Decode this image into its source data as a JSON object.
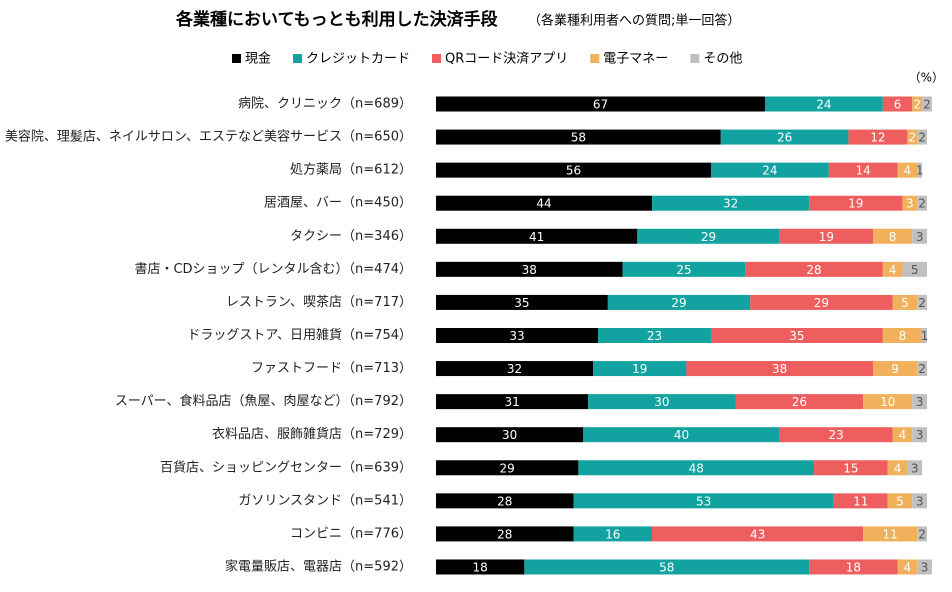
{
  "chart_data": {
    "type": "stacked-bar-horizontal",
    "title": "各業種においてもっとも利用した決済手段",
    "subtitle": "（各業種利用者への質問;単一回答）",
    "unit": "（%）",
    "categories": [
      "病院、クリニック（n=689）",
      "美容院、理髪店、ネイルサロン、エステなど美容サービス（n=650）",
      "処方薬局（n=612）",
      "居酒屋、バー（n=450）",
      "タクシー（n=346）",
      "書店・CDショップ（レンタル含む）（n=474）",
      "レストラン、喫茶店（n=717）",
      "ドラッグストア、日用雑貨（n=754）",
      "ファストフード（n=713）",
      "スーパー、食料品店（魚屋、肉屋など）（n=792）",
      "衣料品店、服飾雑貨店（n=729）",
      "百貨店、ショッピングセンター（n=639）",
      "ガソリンスタンド（n=541）",
      "コンビニ（n=776）",
      "家電量販店、電器店（n=592）"
    ],
    "series": [
      {
        "name": "現金",
        "color": "#000000",
        "values": [
          67,
          58,
          56,
          44,
          41,
          38,
          35,
          33,
          32,
          31,
          30,
          29,
          28,
          28,
          18
        ]
      },
      {
        "name": "クレジットカード",
        "color": "#12a3a0",
        "values": [
          24,
          26,
          24,
          32,
          29,
          25,
          29,
          23,
          19,
          30,
          40,
          48,
          53,
          16,
          58
        ]
      },
      {
        "name": "QRコード決済アプリ",
        "color": "#ee5e5e",
        "values": [
          6,
          12,
          14,
          19,
          19,
          28,
          29,
          35,
          38,
          26,
          23,
          15,
          11,
          43,
          18
        ]
      },
      {
        "name": "電子マネー",
        "color": "#f0b05c",
        "values": [
          2,
          2,
          4,
          3,
          8,
          4,
          5,
          8,
          9,
          10,
          4,
          4,
          5,
          11,
          4
        ]
      },
      {
        "name": "その他",
        "color": "#c0c0c0",
        "values": [
          2,
          2,
          1,
          2,
          3,
          5,
          2,
          1,
          2,
          3,
          3,
          3,
          3,
          2,
          3
        ]
      }
    ],
    "xlim": [
      0,
      100
    ]
  }
}
